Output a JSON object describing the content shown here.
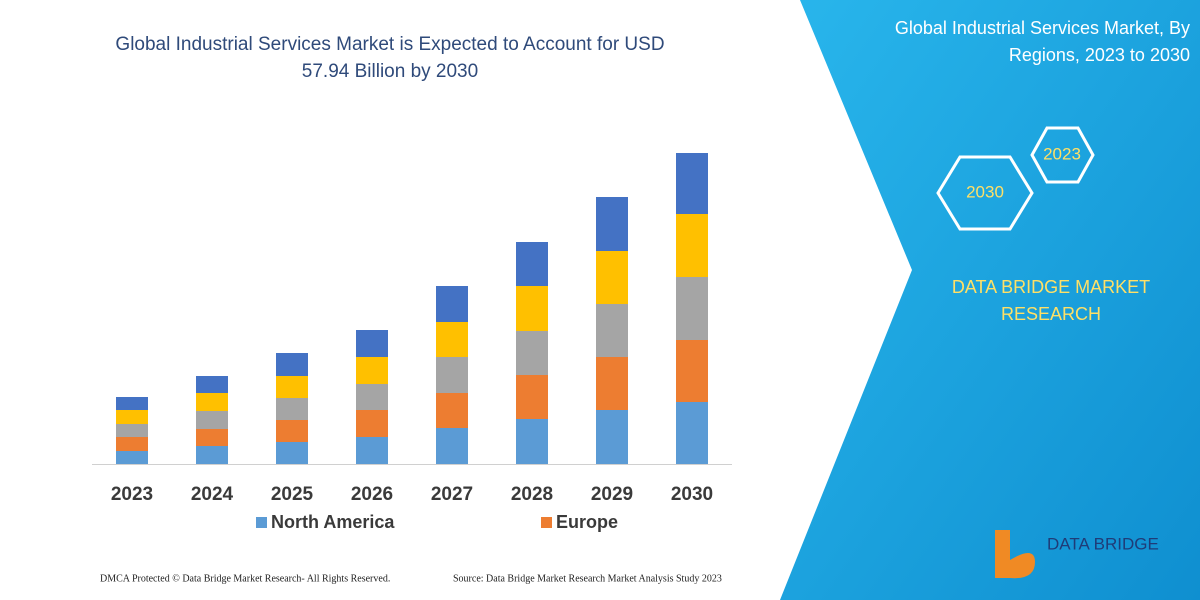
{
  "chart_data": {
    "type": "stacked_bar",
    "title": [
      "Global Industrial Services Market is Expected to Account for USD",
      "57.94 Billion by 2030"
    ],
    "categories": [
      "2023",
      "2024",
      "2025",
      "2026",
      "2027",
      "2028",
      "2029",
      "2030"
    ],
    "series": [
      {
        "name": "North America",
        "color": "#5b9bd5",
        "values": [
          13,
          18,
          22,
          27,
          36,
          45,
          54,
          62
        ]
      },
      {
        "name": "Europe",
        "color": "#ed7d31",
        "values": [
          14,
          17,
          22,
          27,
          35,
          44,
          53,
          62
        ]
      },
      {
        "color": "#a5a5a5",
        "values": [
          13,
          18,
          22,
          26,
          36,
          44,
          53,
          63
        ]
      },
      {
        "color": "#ffc000",
        "values": [
          14,
          18,
          22,
          27,
          35,
          45,
          53,
          63
        ]
      },
      {
        "color": "#4472c4",
        "values": [
          13,
          17,
          23,
          27,
          36,
          44,
          54,
          61
        ]
      }
    ],
    "ylim": [
      0,
      320
    ]
  },
  "panel": {
    "title": [
      "Global Industrial Services Market, By",
      "Regions, 2023 to 2030"
    ],
    "hex_labels": [
      "2023",
      "2030"
    ],
    "brand": [
      "DATA BRIDGE MARKET",
      "RESEARCH"
    ],
    "logo": "DATA BRIDGE"
  },
  "footer": {
    "left": "DMCA Protected © Data Bridge Market Research-  All Rights Reserved.",
    "right": "Source: Data Bridge Market Research  Market Analysis Study 2023"
  }
}
